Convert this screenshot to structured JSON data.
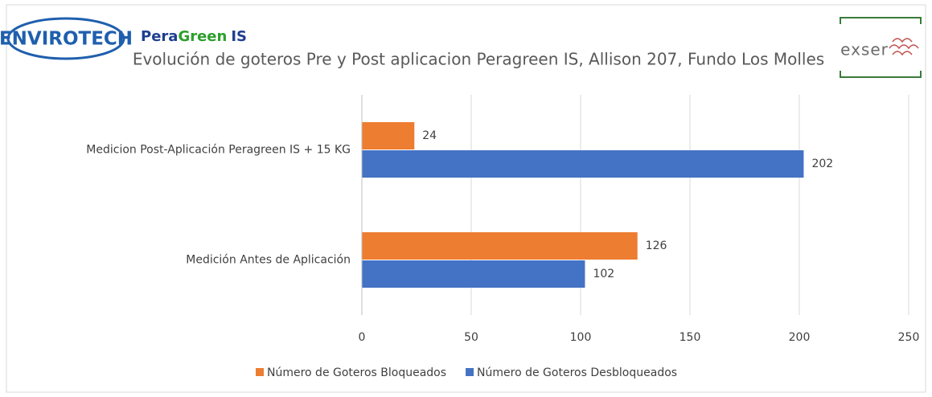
{
  "chart_data": {
    "type": "bar",
    "orientation": "horizontal",
    "title": "Evolución de goteros Pre y Post aplicacion Peragreen IS, Allison 207, Fundo Los Molles",
    "annotations": [
      "ENVIROTECH",
      "Pera",
      "Green",
      "IS",
      "exser"
    ],
    "categories": [
      "Medición Antes de Aplicación",
      "Medicion Post-Aplicación Peragreen IS + 15 KG"
    ],
    "series": [
      {
        "name": "Número de Goteros Bloqueados",
        "color": "#ed7d31",
        "values": [
          126,
          24
        ]
      },
      {
        "name": "Número de Goteros Desbloqueados",
        "color": "#4472c4",
        "values": [
          102,
          202
        ]
      }
    ],
    "xlim": [
      0,
      250
    ],
    "xticks": [
      0,
      50,
      100,
      150,
      200,
      250
    ],
    "grid": true,
    "legend": "bottom"
  }
}
